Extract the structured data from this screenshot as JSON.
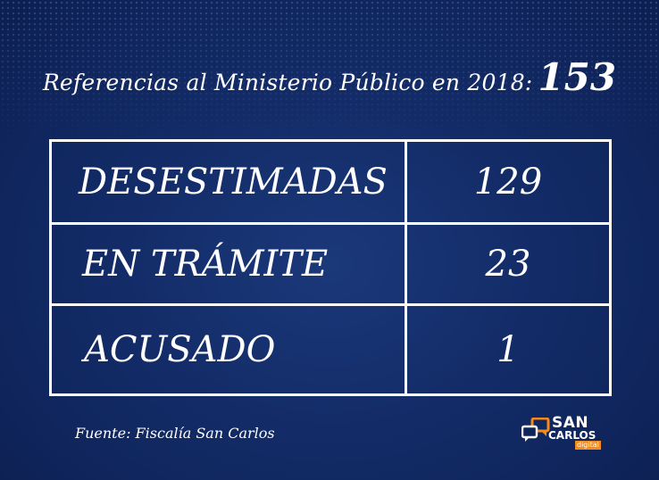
{
  "header": {
    "title": "Referencias al Ministerio Público en 2018:",
    "total": "153"
  },
  "source": "Fuente: Fiscalía San Carlos",
  "logo": {
    "line1": "SAN",
    "line2": "CARLOS",
    "line3": "digital"
  },
  "colors": {
    "background": "#0f2459",
    "text": "#ffffff",
    "logo_accent": "#f28a1c"
  },
  "chart_data": {
    "type": "table",
    "title": "Referencias al Ministerio Público en 2018: 153",
    "rows": [
      {
        "category": "DESESTIMADAS",
        "value": "129"
      },
      {
        "category": "EN TRÁMITE",
        "value": "23"
      },
      {
        "category": "ACUSADO",
        "value": "1"
      }
    ]
  }
}
